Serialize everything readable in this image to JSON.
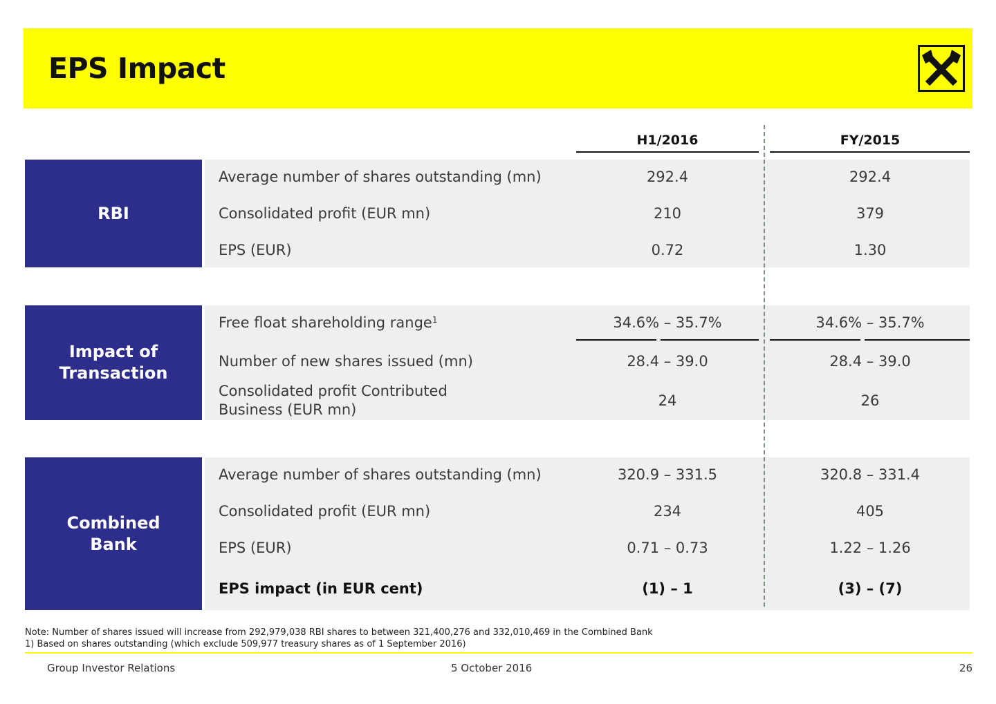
{
  "title": "EPS Impact",
  "columns": [
    "H1/2016",
    "FY/2015"
  ],
  "sections": [
    {
      "name": "RBI",
      "rows": [
        {
          "label": "Average number of shares outstanding (mn)",
          "h1": "292.4",
          "fy": "292.4"
        },
        {
          "label": "Consolidated profit (EUR mn)",
          "h1": "210",
          "fy": "379"
        },
        {
          "label": "EPS (EUR)",
          "h1": "0.72",
          "fy": "1.30"
        }
      ]
    },
    {
      "name_lines": [
        "Impact of",
        "Transaction"
      ],
      "rows": [
        {
          "label": "Free float shareholding range",
          "footnote": "1",
          "h1": "34.6% – 35.7%",
          "fy": "34.6% – 35.7%"
        },
        {
          "label": "Number of new shares issued (mn)",
          "h1": "28.4 – 39.0",
          "fy": "28.4 – 39.0"
        },
        {
          "label_lines": [
            "Consolidated profit Contributed",
            "Business (EUR mn)"
          ],
          "h1": "24",
          "fy": "26"
        }
      ]
    },
    {
      "name_lines": [
        "Combined",
        "Bank"
      ],
      "rows": [
        {
          "label": "Average number of shares outstanding (mn)",
          "h1": "320.9 – 331.5",
          "fy": "320.8 – 331.4"
        },
        {
          "label": "Consolidated profit (EUR mn)",
          "h1": "234",
          "fy": "405"
        },
        {
          "label": "EPS (EUR)",
          "h1": "0.71 – 0.73",
          "fy": "1.22 – 1.26"
        },
        {
          "label": "EPS impact (in EUR cent)",
          "h1": "(1) – 1",
          "fy": "(3) – (7)"
        }
      ]
    }
  ],
  "notes": [
    "Note: Number of shares issued will increase from 292,979,038 RBI shares to between 321,400,276 and 332,010,469 in the Combined Bank",
    "1) Based on shares outstanding (which exclude 509,977 treasury shares as of 1 September 2016)"
  ],
  "footer": {
    "left": "Group Investor Relations",
    "center": "5 October 2016",
    "page": "26"
  },
  "colors": {
    "header_yellow": "#ffff00",
    "section_blue": "#2d2d8c",
    "row_gray": "#efefef"
  },
  "logo_icon": "crossed-gables-logo"
}
